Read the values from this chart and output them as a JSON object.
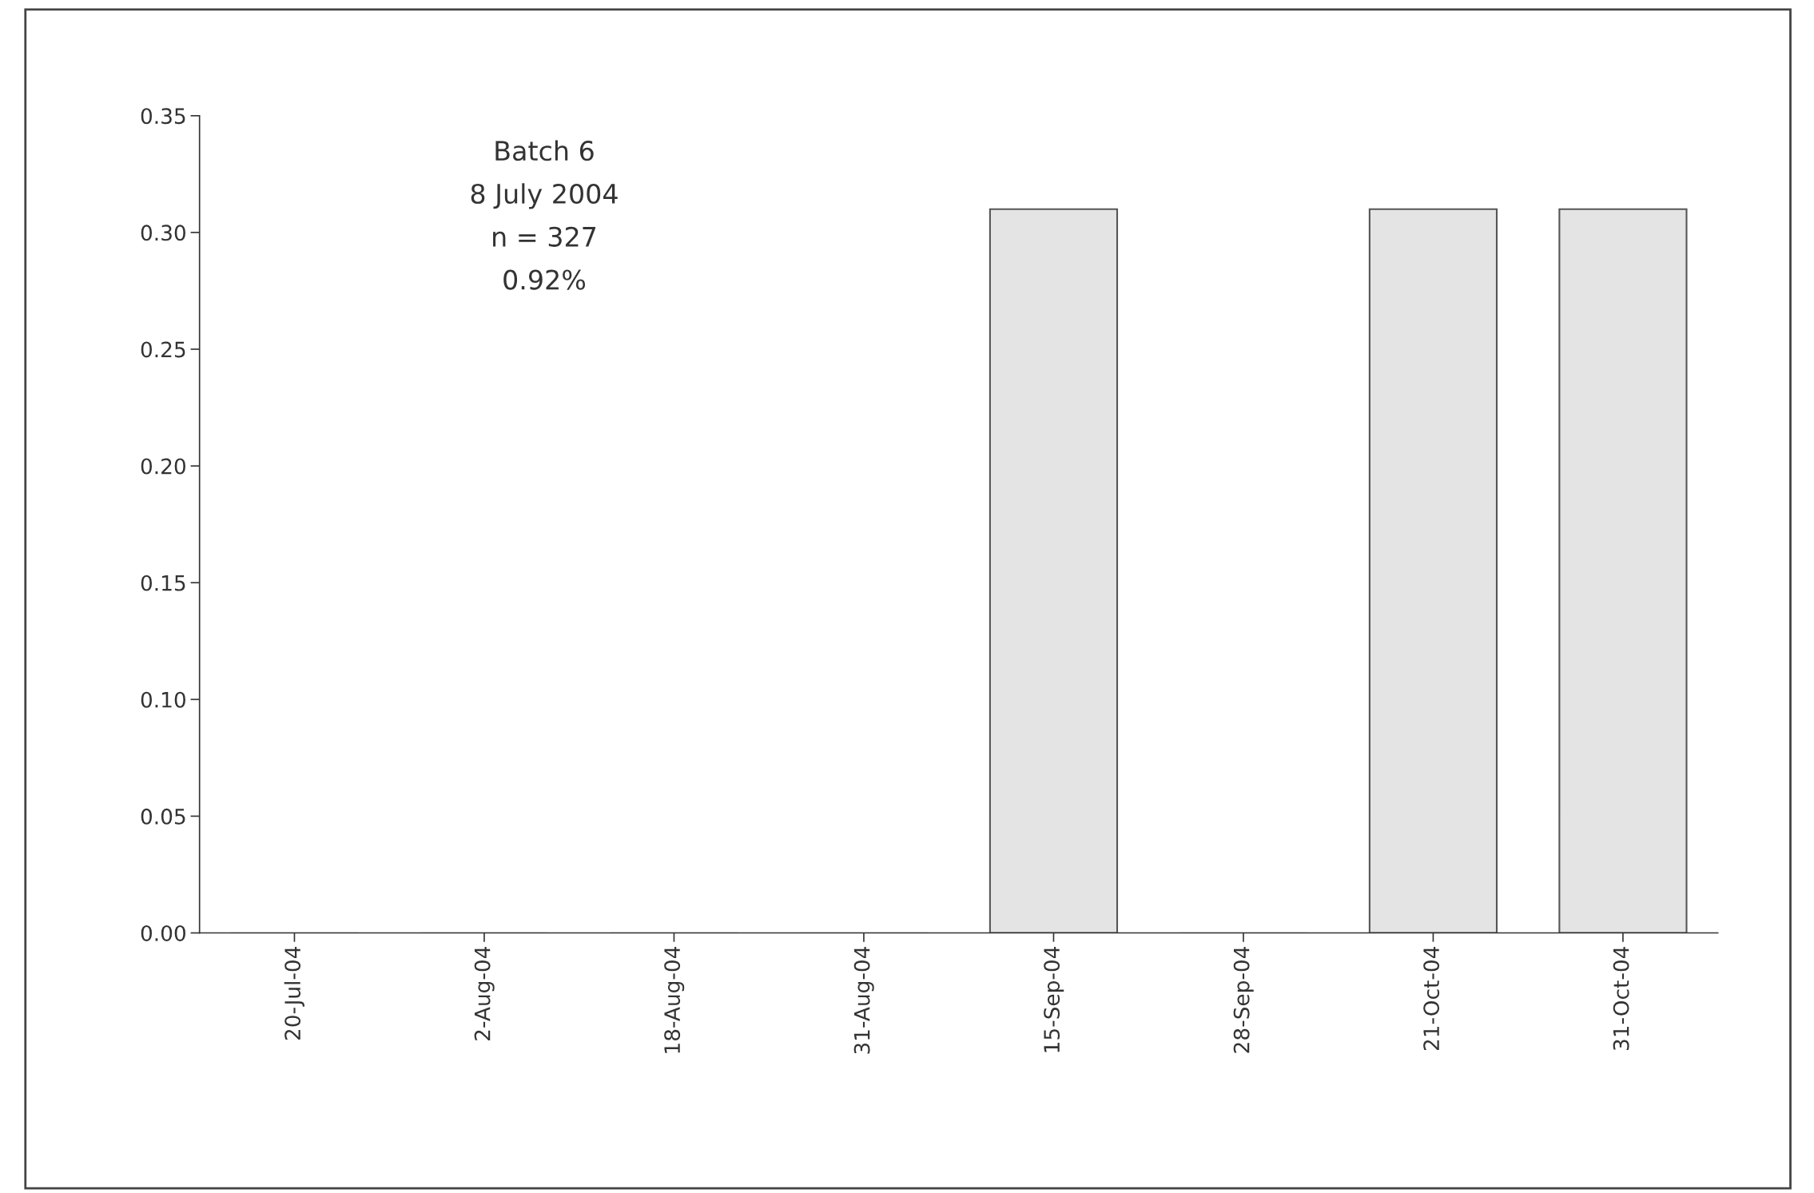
{
  "chart_data": {
    "type": "bar",
    "categories": [
      "20-Jul-04",
      "2-Aug-04",
      "18-Aug-04",
      "31-Aug-04",
      "15-Sep-04",
      "28-Sep-04",
      "21-Oct-04",
      "31-Oct-04"
    ],
    "values": [
      0,
      0,
      0,
      0,
      0.31,
      0,
      0.31,
      0.31
    ],
    "color": "#e4e4e4",
    "ylim": [
      0,
      0.35
    ],
    "yticks": [
      {
        "value": 0,
        "label": "0.00"
      },
      {
        "value": 0.05,
        "label": "0.05"
      },
      {
        "value": 0.1,
        "label": "0.10"
      },
      {
        "value": 0.15,
        "label": "0.15"
      },
      {
        "value": 0.2,
        "label": "0.20"
      },
      {
        "value": 0.25,
        "label": "0.25"
      },
      {
        "value": 0.3,
        "label": "0.30"
      },
      {
        "value": 0.35,
        "label": "0.35"
      }
    ],
    "annotations": [
      "Batch 6\n8 July 2004\nn = 327\n0.92%"
    ],
    "grid": false,
    "legend": false
  }
}
